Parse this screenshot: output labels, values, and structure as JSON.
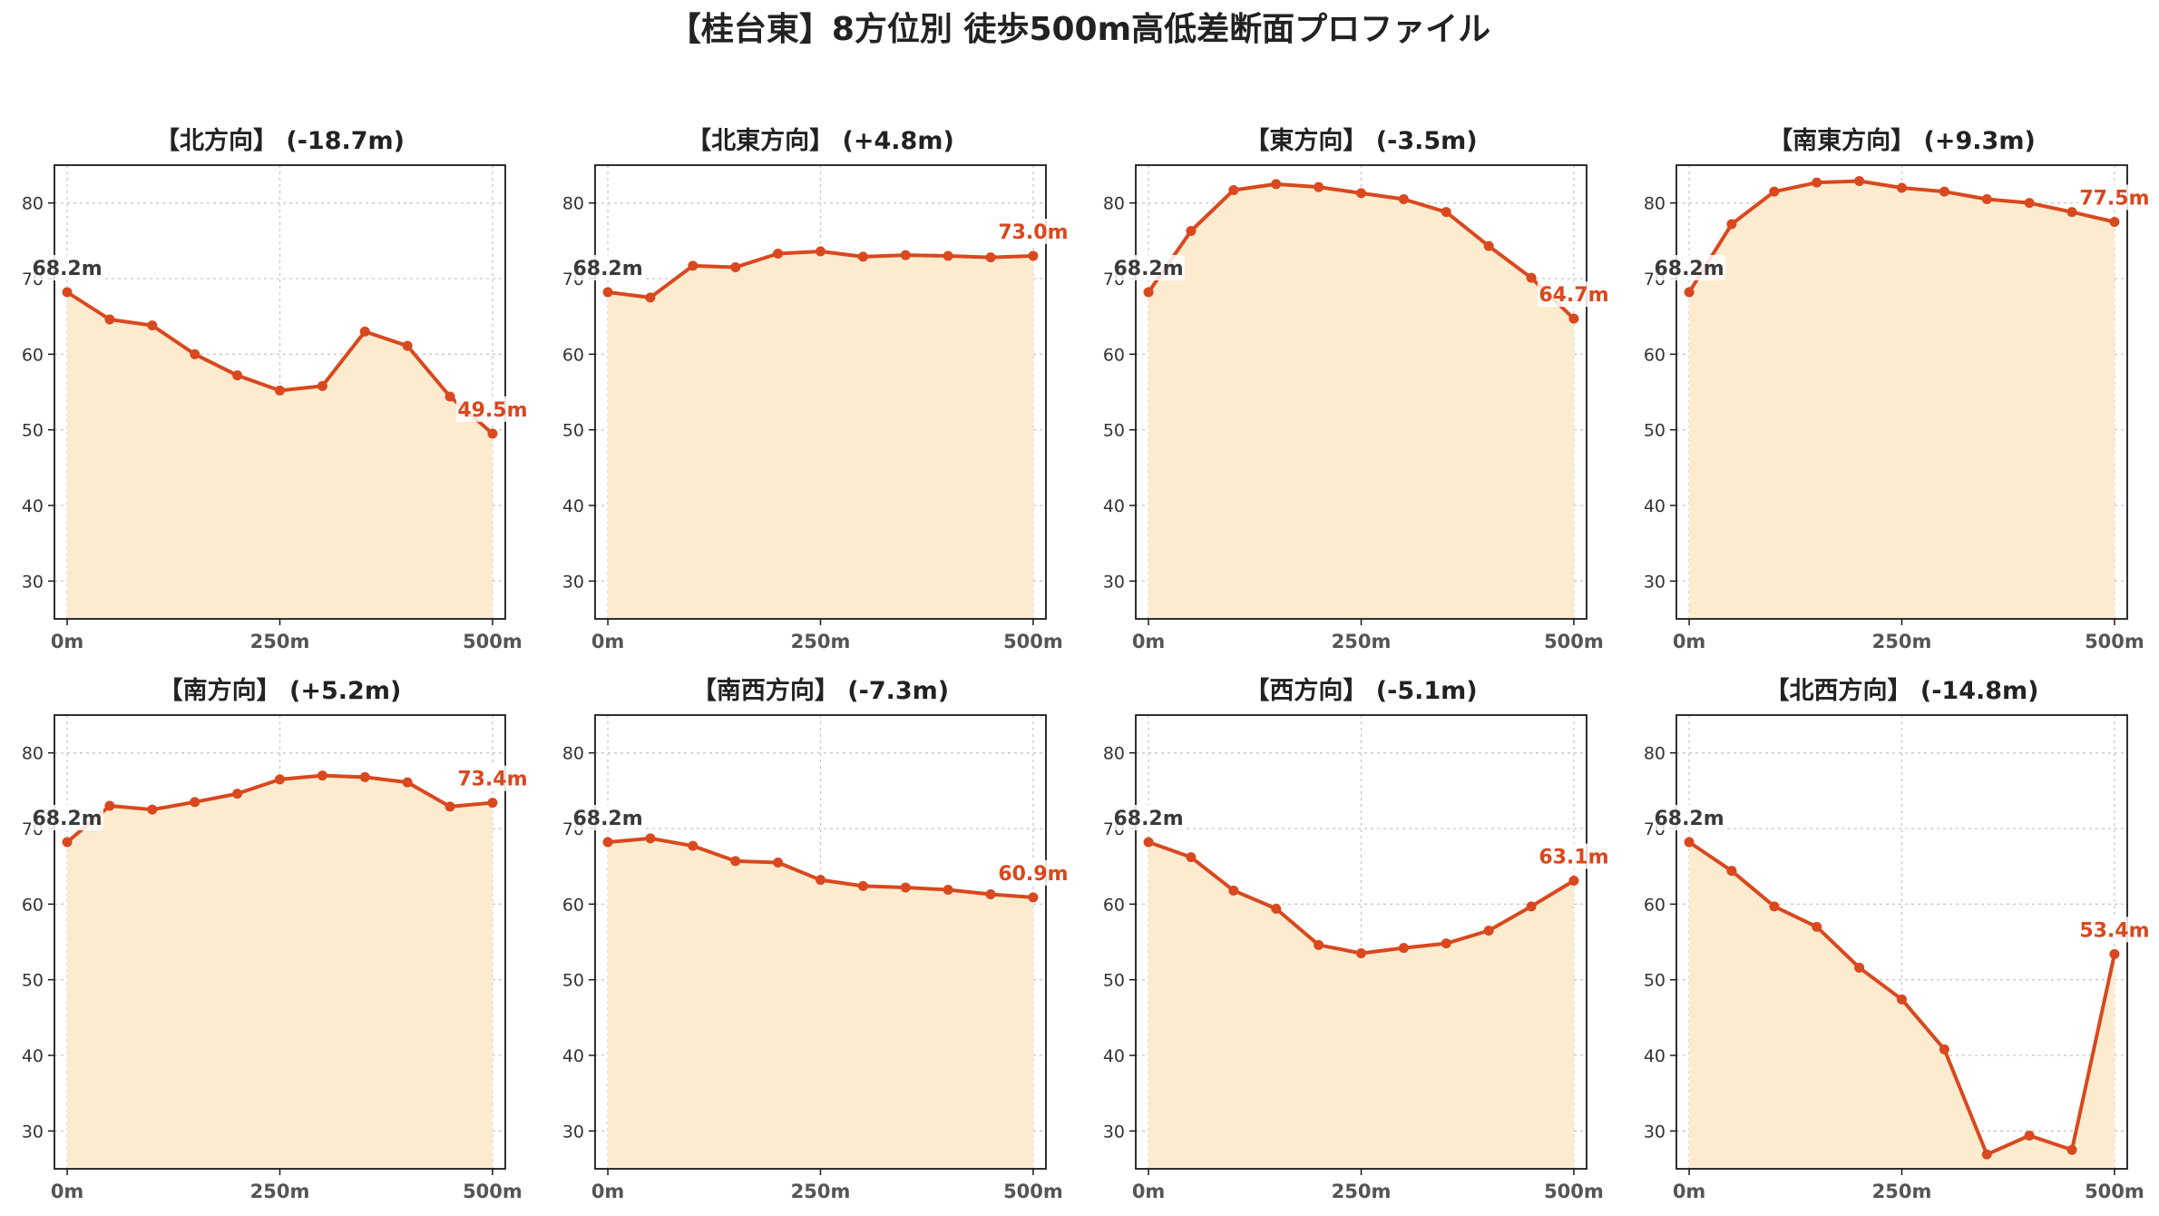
{
  "title": "【桂台東】8方位別 徒歩500m高低差断面プロファイル",
  "colors": {
    "line": "#d9481e",
    "fill": "#fdebd0",
    "start_label": "#3a3a3a",
    "end_label": "#d9481e"
  },
  "chart_data": [
    {
      "type": "area",
      "title": "【北方向】 (-18.7m)",
      "x": [
        0,
        50,
        100,
        150,
        200,
        250,
        300,
        350,
        400,
        450,
        500
      ],
      "values": [
        68.2,
        64.6,
        63.8,
        60.0,
        57.2,
        55.2,
        55.8,
        63.0,
        61.1,
        54.4,
        49.5
      ],
      "start_label": "68.2m",
      "end_label": "49.5m",
      "xticks": [
        "0m",
        "250m",
        "500m"
      ],
      "xlim": [
        -15,
        515
      ],
      "yticks": [
        "30",
        "40",
        "50",
        "60",
        "70",
        "80"
      ],
      "ylim": [
        25,
        85
      ],
      "grid": true
    },
    {
      "type": "area",
      "title": "【北東方向】 (+4.8m)",
      "x": [
        0,
        50,
        100,
        150,
        200,
        250,
        300,
        350,
        400,
        450,
        500
      ],
      "values": [
        68.2,
        67.5,
        71.7,
        71.5,
        73.3,
        73.6,
        72.9,
        73.1,
        73.0,
        72.8,
        73.0
      ],
      "start_label": "68.2m",
      "end_label": "73.0m",
      "xticks": [
        "0m",
        "250m",
        "500m"
      ],
      "xlim": [
        -15,
        515
      ],
      "yticks": [
        "30",
        "40",
        "50",
        "60",
        "70",
        "80"
      ],
      "ylim": [
        25,
        85
      ],
      "grid": true
    },
    {
      "type": "area",
      "title": "【東方向】 (-3.5m)",
      "x": [
        0,
        50,
        100,
        150,
        200,
        250,
        300,
        350,
        400,
        450,
        500
      ],
      "values": [
        68.2,
        76.3,
        81.7,
        82.5,
        82.1,
        81.3,
        80.5,
        78.8,
        74.3,
        70.1,
        64.7
      ],
      "start_label": "68.2m",
      "end_label": "64.7m",
      "xticks": [
        "0m",
        "250m",
        "500m"
      ],
      "xlim": [
        -15,
        515
      ],
      "yticks": [
        "30",
        "40",
        "50",
        "60",
        "70",
        "80"
      ],
      "ylim": [
        25,
        85
      ],
      "grid": true
    },
    {
      "type": "area",
      "title": "【南東方向】 (+9.3m)",
      "x": [
        0,
        50,
        100,
        150,
        200,
        250,
        300,
        350,
        400,
        450,
        500
      ],
      "values": [
        68.2,
        77.2,
        81.5,
        82.7,
        82.9,
        82.0,
        81.5,
        80.5,
        80.0,
        78.8,
        77.5
      ],
      "start_label": "68.2m",
      "end_label": "77.5m",
      "xticks": [
        "0m",
        "250m",
        "500m"
      ],
      "xlim": [
        -15,
        515
      ],
      "yticks": [
        "30",
        "40",
        "50",
        "60",
        "70",
        "80"
      ],
      "ylim": [
        25,
        85
      ],
      "grid": true
    },
    {
      "type": "area",
      "title": "【南方向】 (+5.2m)",
      "x": [
        0,
        50,
        100,
        150,
        200,
        250,
        300,
        350,
        400,
        450,
        500
      ],
      "values": [
        68.2,
        73.0,
        72.5,
        73.5,
        74.6,
        76.5,
        77.0,
        76.8,
        76.1,
        72.9,
        73.4
      ],
      "start_label": "68.2m",
      "end_label": "73.4m",
      "xticks": [
        "0m",
        "250m",
        "500m"
      ],
      "xlim": [
        -15,
        515
      ],
      "yticks": [
        "30",
        "40",
        "50",
        "60",
        "70",
        "80"
      ],
      "ylim": [
        25,
        85
      ],
      "grid": true
    },
    {
      "type": "area",
      "title": "【南西方向】 (-7.3m)",
      "x": [
        0,
        50,
        100,
        150,
        200,
        250,
        300,
        350,
        400,
        450,
        500
      ],
      "values": [
        68.2,
        68.7,
        67.7,
        65.7,
        65.5,
        63.2,
        62.4,
        62.2,
        61.9,
        61.3,
        60.9
      ],
      "start_label": "68.2m",
      "end_label": "60.9m",
      "xticks": [
        "0m",
        "250m",
        "500m"
      ],
      "xlim": [
        -15,
        515
      ],
      "yticks": [
        "30",
        "40",
        "50",
        "60",
        "70",
        "80"
      ],
      "ylim": [
        25,
        85
      ],
      "grid": true
    },
    {
      "type": "area",
      "title": "【西方向】 (-5.1m)",
      "x": [
        0,
        50,
        100,
        150,
        200,
        250,
        300,
        350,
        400,
        450,
        500
      ],
      "values": [
        68.2,
        66.2,
        61.8,
        59.4,
        54.6,
        53.5,
        54.2,
        54.8,
        56.5,
        59.7,
        63.1
      ],
      "start_label": "68.2m",
      "end_label": "63.1m",
      "xticks": [
        "0m",
        "250m",
        "500m"
      ],
      "xlim": [
        -15,
        515
      ],
      "yticks": [
        "30",
        "40",
        "50",
        "60",
        "70",
        "80"
      ],
      "ylim": [
        25,
        85
      ],
      "grid": true
    },
    {
      "type": "area",
      "title": "【北西方向】 (-14.8m)",
      "x": [
        0,
        50,
        100,
        150,
        200,
        250,
        300,
        350,
        400,
        450,
        500
      ],
      "values": [
        68.2,
        64.4,
        59.7,
        57.0,
        51.6,
        47.4,
        40.8,
        26.9,
        29.4,
        27.5,
        53.4
      ],
      "start_label": "68.2m",
      "end_label": "53.4m",
      "xticks": [
        "0m",
        "250m",
        "500m"
      ],
      "xlim": [
        -15,
        515
      ],
      "yticks": [
        "30",
        "40",
        "50",
        "60",
        "70",
        "80"
      ],
      "ylim": [
        25,
        85
      ],
      "grid": true
    }
  ]
}
